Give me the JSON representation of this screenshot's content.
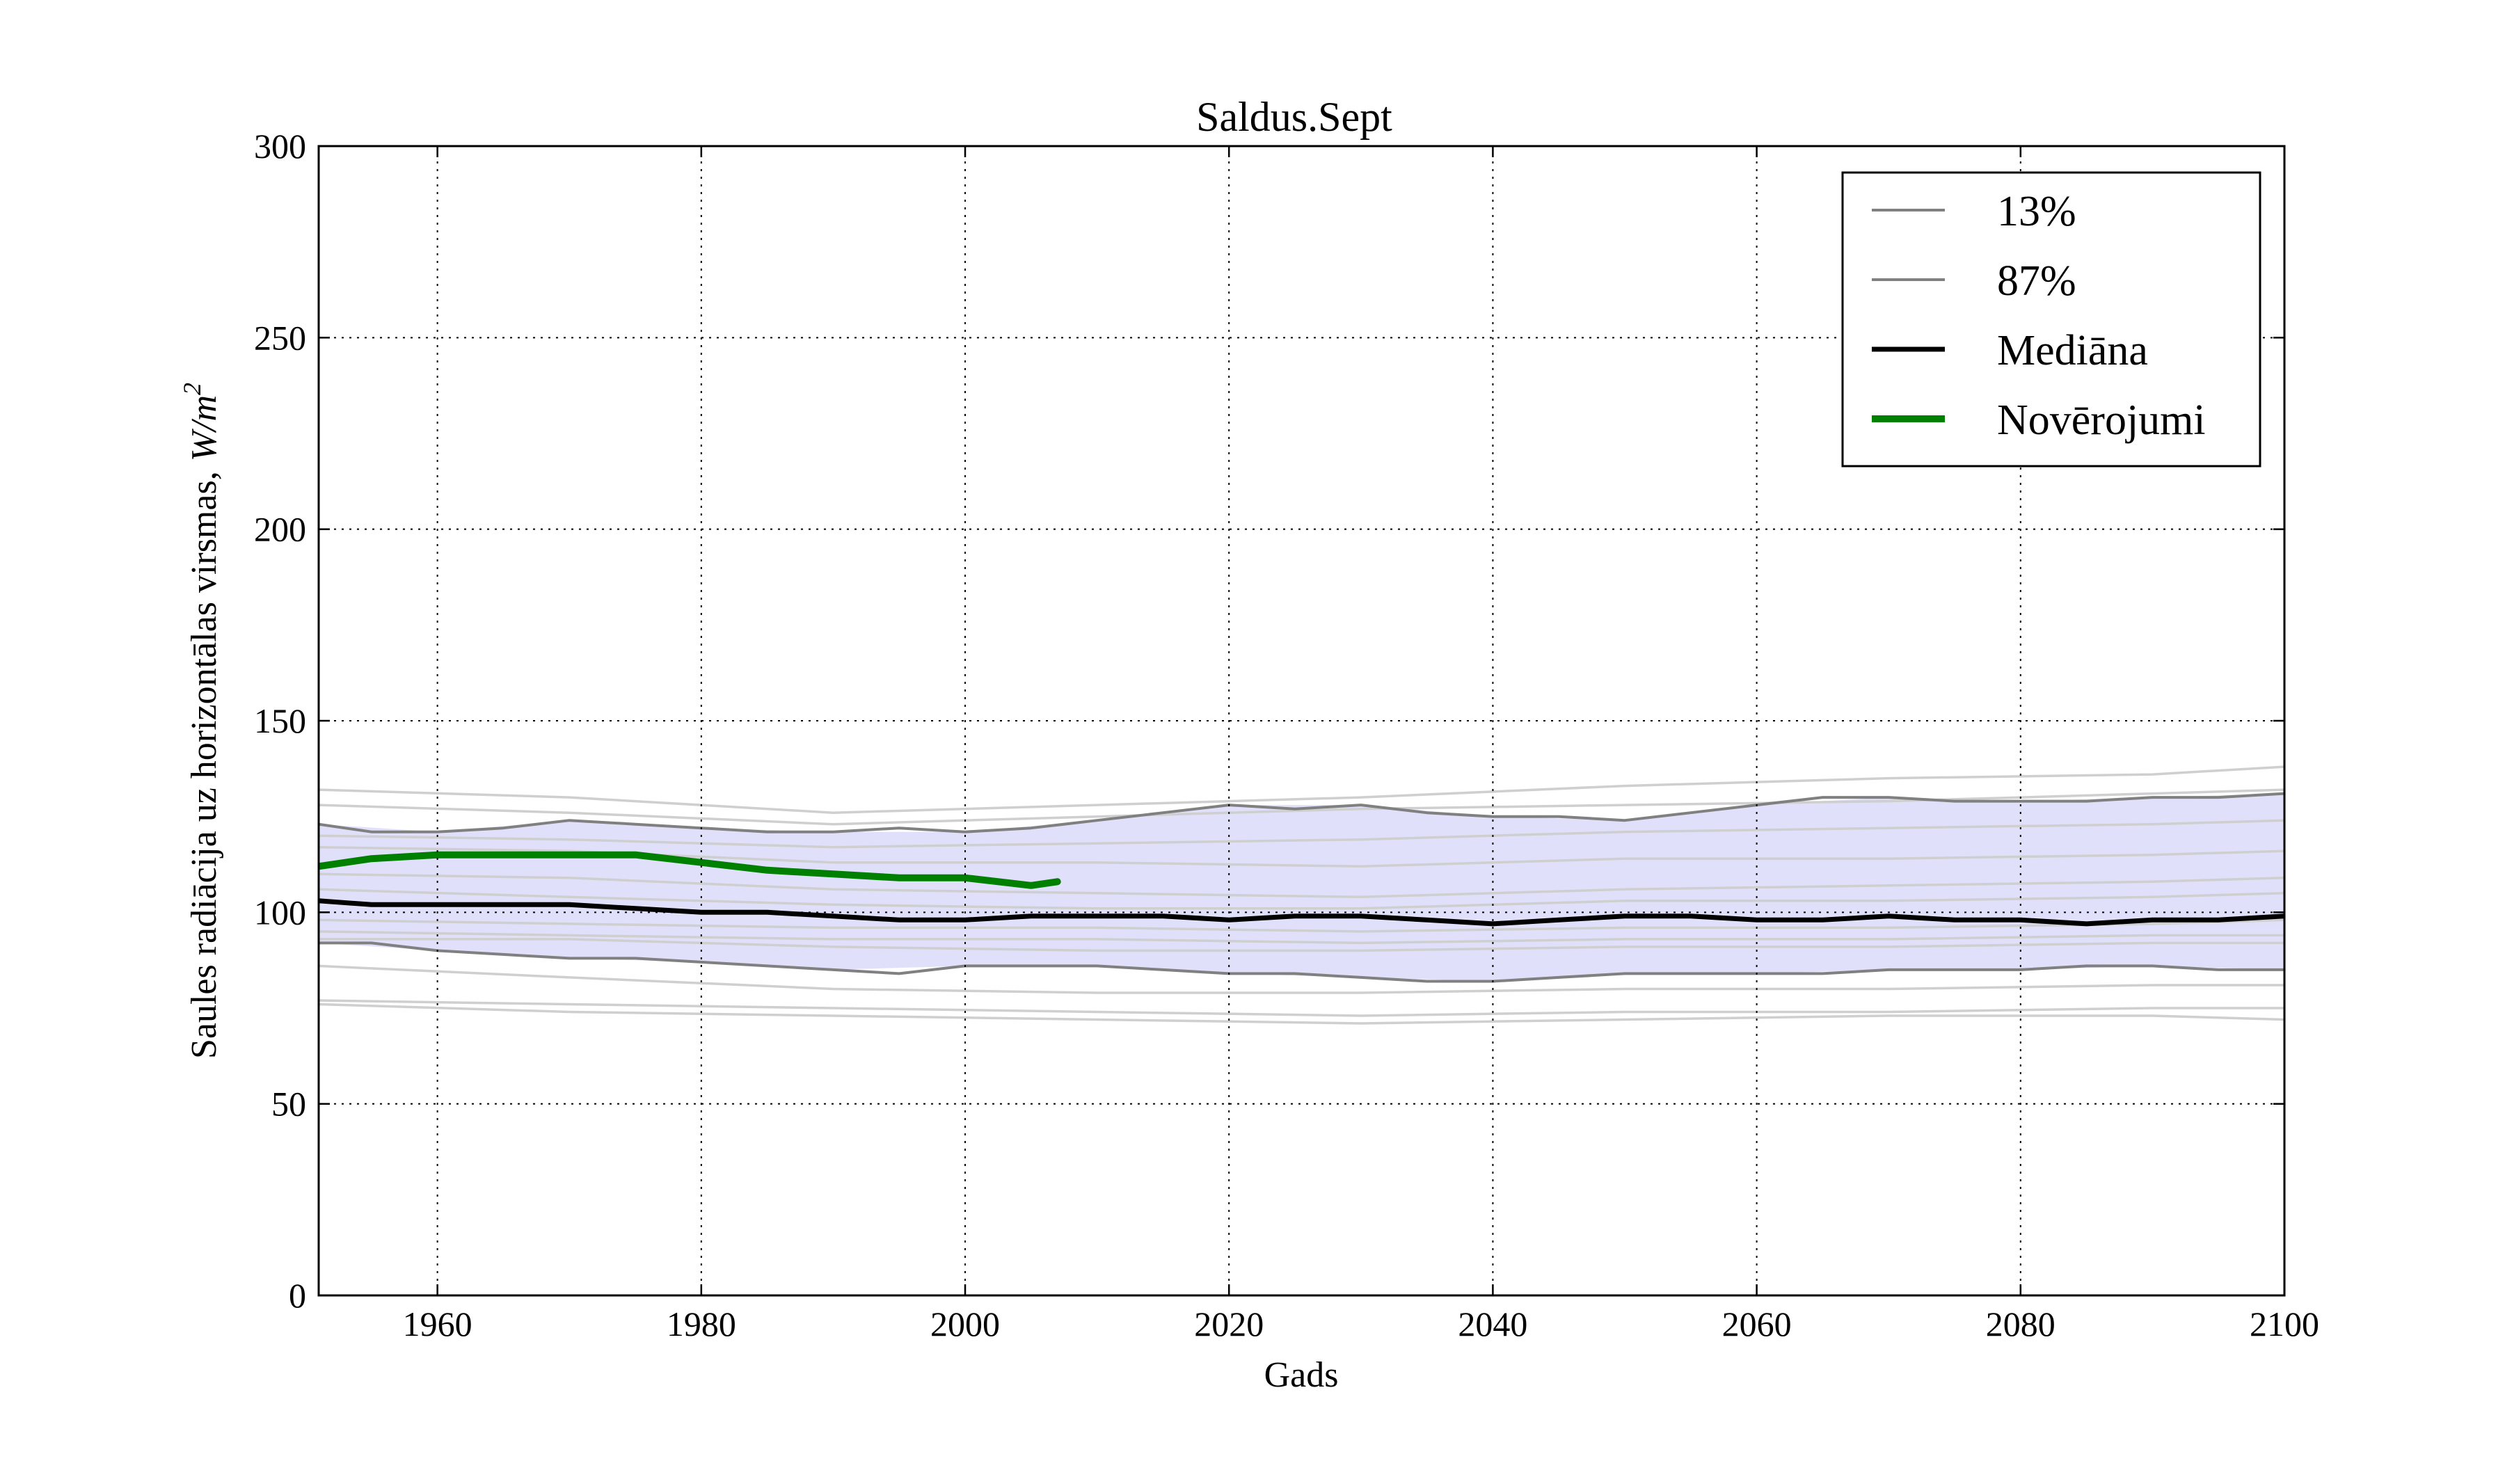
{
  "chart_data": {
    "type": "line",
    "title": "Saldus.Sept",
    "xlabel": "Gads",
    "ylabel": "Saules radiācija uz horizontālas virsmas,",
    "ylabel_unit": "W/m",
    "ylabel_unit_exp": "2",
    "xlim": [
      1951,
      2100
    ],
    "ylim": [
      0,
      300
    ],
    "x_ticks": [
      1960,
      1980,
      2000,
      2020,
      2040,
      2060,
      2080,
      2100
    ],
    "y_ticks": [
      0,
      50,
      100,
      150,
      200,
      250,
      300
    ],
    "grid": true,
    "legend_position": "top-right",
    "band": {
      "color": "#e0e0fb",
      "lower": [
        [
          1951,
          92
        ],
        [
          1960,
          90
        ],
        [
          1970,
          88
        ],
        [
          1980,
          87
        ],
        [
          1990,
          85
        ],
        [
          2000,
          86
        ],
        [
          2010,
          86
        ],
        [
          2020,
          84
        ],
        [
          2030,
          83
        ],
        [
          2040,
          82
        ],
        [
          2050,
          84
        ],
        [
          2060,
          84
        ],
        [
          2070,
          85
        ],
        [
          2080,
          85
        ],
        [
          2090,
          86
        ],
        [
          2100,
          85
        ]
      ],
      "upper": [
        [
          1951,
          123
        ],
        [
          1960,
          121
        ],
        [
          1970,
          124
        ],
        [
          1980,
          122
        ],
        [
          1990,
          121
        ],
        [
          2000,
          121
        ],
        [
          2010,
          124
        ],
        [
          2020,
          128
        ],
        [
          2030,
          128
        ],
        [
          2040,
          125
        ],
        [
          2050,
          124
        ],
        [
          2060,
          128
        ],
        [
          2070,
          130
        ],
        [
          2080,
          129
        ],
        [
          2090,
          130
        ],
        [
          2100,
          131
        ]
      ]
    },
    "series": [
      {
        "name": "13%",
        "color": "#808080",
        "width": 4,
        "points": [
          [
            1951,
            92
          ],
          [
            1955,
            92
          ],
          [
            1960,
            90
          ],
          [
            1965,
            89
          ],
          [
            1970,
            88
          ],
          [
            1975,
            88
          ],
          [
            1980,
            87
          ],
          [
            1985,
            86
          ],
          [
            1990,
            85
          ],
          [
            1995,
            84
          ],
          [
            2000,
            86
          ],
          [
            2005,
            86
          ],
          [
            2010,
            86
          ],
          [
            2015,
            85
          ],
          [
            2020,
            84
          ],
          [
            2025,
            84
          ],
          [
            2030,
            83
          ],
          [
            2035,
            82
          ],
          [
            2040,
            82
          ],
          [
            2045,
            83
          ],
          [
            2050,
            84
          ],
          [
            2055,
            84
          ],
          [
            2060,
            84
          ],
          [
            2065,
            84
          ],
          [
            2070,
            85
          ],
          [
            2075,
            85
          ],
          [
            2080,
            85
          ],
          [
            2085,
            86
          ],
          [
            2090,
            86
          ],
          [
            2095,
            85
          ],
          [
            2100,
            85
          ]
        ]
      },
      {
        "name": "87%",
        "color": "#808080",
        "width": 4,
        "points": [
          [
            1951,
            123
          ],
          [
            1955,
            121
          ],
          [
            1960,
            121
          ],
          [
            1965,
            122
          ],
          [
            1970,
            124
          ],
          [
            1975,
            123
          ],
          [
            1980,
            122
          ],
          [
            1985,
            121
          ],
          [
            1990,
            121
          ],
          [
            1995,
            122
          ],
          [
            2000,
            121
          ],
          [
            2005,
            122
          ],
          [
            2010,
            124
          ],
          [
            2015,
            126
          ],
          [
            2020,
            128
          ],
          [
            2025,
            127
          ],
          [
            2030,
            128
          ],
          [
            2035,
            126
          ],
          [
            2040,
            125
          ],
          [
            2045,
            125
          ],
          [
            2050,
            124
          ],
          [
            2055,
            126
          ],
          [
            2060,
            128
          ],
          [
            2065,
            130
          ],
          [
            2070,
            130
          ],
          [
            2075,
            129
          ],
          [
            2080,
            129
          ],
          [
            2085,
            129
          ],
          [
            2090,
            130
          ],
          [
            2095,
            130
          ],
          [
            2100,
            131
          ]
        ]
      },
      {
        "name": "Mediāna",
        "color": "#000000",
        "width": 7,
        "points": [
          [
            1951,
            103
          ],
          [
            1955,
            102
          ],
          [
            1960,
            102
          ],
          [
            1965,
            102
          ],
          [
            1970,
            102
          ],
          [
            1975,
            101
          ],
          [
            1980,
            100
          ],
          [
            1985,
            100
          ],
          [
            1990,
            99
          ],
          [
            1995,
            98
          ],
          [
            2000,
            98
          ],
          [
            2005,
            99
          ],
          [
            2010,
            99
          ],
          [
            2015,
            99
          ],
          [
            2020,
            98
          ],
          [
            2025,
            99
          ],
          [
            2030,
            99
          ],
          [
            2035,
            98
          ],
          [
            2040,
            97
          ],
          [
            2045,
            98
          ],
          [
            2050,
            99
          ],
          [
            2055,
            99
          ],
          [
            2060,
            98
          ],
          [
            2065,
            98
          ],
          [
            2070,
            99
          ],
          [
            2075,
            98
          ],
          [
            2080,
            98
          ],
          [
            2085,
            97
          ],
          [
            2090,
            98
          ],
          [
            2095,
            98
          ],
          [
            2100,
            99
          ]
        ]
      },
      {
        "name": "Novērojumi",
        "color": "#008000",
        "width": 10,
        "points": [
          [
            1951,
            112
          ],
          [
            1955,
            114
          ],
          [
            1960,
            115
          ],
          [
            1965,
            115
          ],
          [
            1970,
            115
          ],
          [
            1975,
            115
          ],
          [
            1980,
            113
          ],
          [
            1985,
            111
          ],
          [
            1990,
            110
          ],
          [
            1995,
            109
          ],
          [
            2000,
            109
          ],
          [
            2005,
            107
          ],
          [
            2007,
            108
          ]
        ]
      }
    ],
    "ensemble": {
      "color": "#cfcfcf",
      "lines": [
        [
          [
            1951,
            132
          ],
          [
            1970,
            130
          ],
          [
            1990,
            126
          ],
          [
            2010,
            128
          ],
          [
            2030,
            130
          ],
          [
            2050,
            133
          ],
          [
            2070,
            135
          ],
          [
            2090,
            136
          ],
          [
            2100,
            138
          ]
        ],
        [
          [
            1951,
            128
          ],
          [
            1970,
            126
          ],
          [
            1990,
            123
          ],
          [
            2010,
            125
          ],
          [
            2030,
            127
          ],
          [
            2050,
            128
          ],
          [
            2070,
            129
          ],
          [
            2090,
            131
          ],
          [
            2100,
            132
          ]
        ],
        [
          [
            1951,
            120
          ],
          [
            1970,
            119
          ],
          [
            1990,
            117
          ],
          [
            2010,
            118
          ],
          [
            2030,
            119
          ],
          [
            2050,
            121
          ],
          [
            2070,
            122
          ],
          [
            2090,
            123
          ],
          [
            2100,
            124
          ]
        ],
        [
          [
            1951,
            117
          ],
          [
            1970,
            116
          ],
          [
            1990,
            113
          ],
          [
            2010,
            113
          ],
          [
            2030,
            112
          ],
          [
            2050,
            114
          ],
          [
            2070,
            114
          ],
          [
            2090,
            115
          ],
          [
            2100,
            116
          ]
        ],
        [
          [
            1951,
            110
          ],
          [
            1970,
            109
          ],
          [
            1990,
            106
          ],
          [
            2010,
            105
          ],
          [
            2030,
            104
          ],
          [
            2050,
            106
          ],
          [
            2070,
            107
          ],
          [
            2090,
            108
          ],
          [
            2100,
            109
          ]
        ],
        [
          [
            1951,
            106
          ],
          [
            1970,
            104
          ],
          [
            1990,
            102
          ],
          [
            2010,
            101
          ],
          [
            2030,
            101
          ],
          [
            2050,
            103
          ],
          [
            2070,
            103
          ],
          [
            2090,
            104
          ],
          [
            2100,
            105
          ]
        ],
        [
          [
            1951,
            98
          ],
          [
            1970,
            97
          ],
          [
            1990,
            96
          ],
          [
            2010,
            96
          ],
          [
            2030,
            95
          ],
          [
            2050,
            96
          ],
          [
            2070,
            96
          ],
          [
            2090,
            97
          ],
          [
            2100,
            98
          ]
        ],
        [
          [
            1951,
            95
          ],
          [
            1970,
            94
          ],
          [
            1990,
            93
          ],
          [
            2010,
            93
          ],
          [
            2030,
            92
          ],
          [
            2050,
            93
          ],
          [
            2070,
            93
          ],
          [
            2090,
            94
          ],
          [
            2100,
            94
          ]
        ],
        [
          [
            1951,
            93
          ],
          [
            1970,
            93
          ],
          [
            1990,
            91
          ],
          [
            2010,
            90
          ],
          [
            2030,
            90
          ],
          [
            2050,
            91
          ],
          [
            2070,
            91
          ],
          [
            2090,
            92
          ],
          [
            2100,
            92
          ]
        ],
        [
          [
            1951,
            86
          ],
          [
            1970,
            83
          ],
          [
            1990,
            80
          ],
          [
            2010,
            79
          ],
          [
            2030,
            79
          ],
          [
            2050,
            80
          ],
          [
            2070,
            80
          ],
          [
            2090,
            81
          ],
          [
            2100,
            81
          ]
        ],
        [
          [
            1951,
            77
          ],
          [
            1970,
            76
          ],
          [
            1990,
            75
          ],
          [
            2010,
            74
          ],
          [
            2030,
            73
          ],
          [
            2050,
            74
          ],
          [
            2070,
            74
          ],
          [
            2090,
            75
          ],
          [
            2100,
            75
          ]
        ],
        [
          [
            1951,
            76
          ],
          [
            1970,
            74
          ],
          [
            1990,
            73
          ],
          [
            2010,
            72
          ],
          [
            2030,
            71
          ],
          [
            2050,
            72
          ],
          [
            2070,
            73
          ],
          [
            2090,
            73
          ],
          [
            2100,
            72
          ]
        ]
      ]
    }
  }
}
